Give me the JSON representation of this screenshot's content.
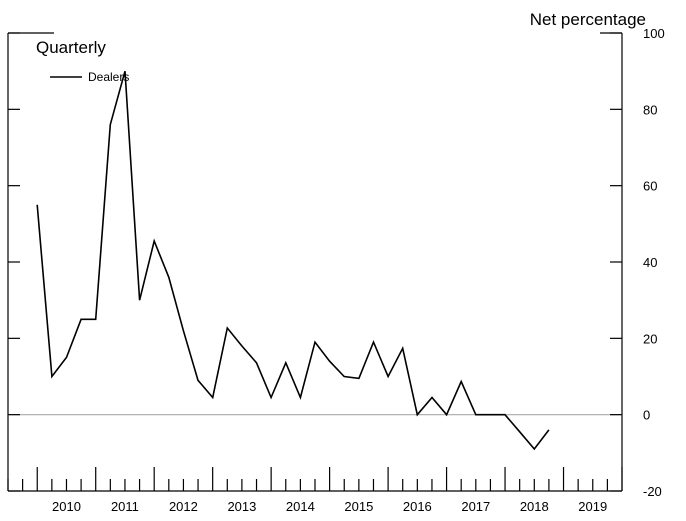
{
  "chart_data": {
    "type": "line",
    "frequency_label": "Quarterly",
    "ylabel": "Net percentage",
    "ylim": [
      -20,
      100
    ],
    "yticks": [
      -20,
      0,
      20,
      40,
      60,
      80,
      100
    ],
    "xlim": [
      2009.5,
      2020.0
    ],
    "year_labels": [
      "2010",
      "2011",
      "2012",
      "2013",
      "2014",
      "2015",
      "2016",
      "2017",
      "2018",
      "2019"
    ],
    "zero_line": true,
    "series": [
      {
        "name": "Dealers",
        "color": "#000000",
        "x": [
          2010.0,
          2010.25,
          2010.5,
          2010.75,
          2011.0,
          2011.25,
          2011.5,
          2011.75,
          2012.0,
          2012.25,
          2012.5,
          2012.75,
          2013.0,
          2013.25,
          2013.5,
          2013.75,
          2014.0,
          2014.25,
          2014.5,
          2014.75,
          2015.0,
          2015.25,
          2015.5,
          2015.75,
          2016.0,
          2016.25,
          2016.5,
          2016.75,
          2017.0,
          2017.25,
          2017.5,
          2017.75,
          2018.0,
          2018.25,
          2018.5,
          2018.75
        ],
        "values": [
          55,
          10,
          15,
          25,
          25,
          76,
          90,
          30,
          45.5,
          36,
          22,
          9,
          4.5,
          22.7,
          18,
          13.6,
          4.5,
          13.6,
          4.5,
          19,
          14,
          10,
          9.5,
          19,
          10,
          17.4,
          0,
          4.5,
          0,
          8.7,
          0,
          0,
          0,
          -4.5,
          -9,
          -4
        ]
      }
    ]
  }
}
